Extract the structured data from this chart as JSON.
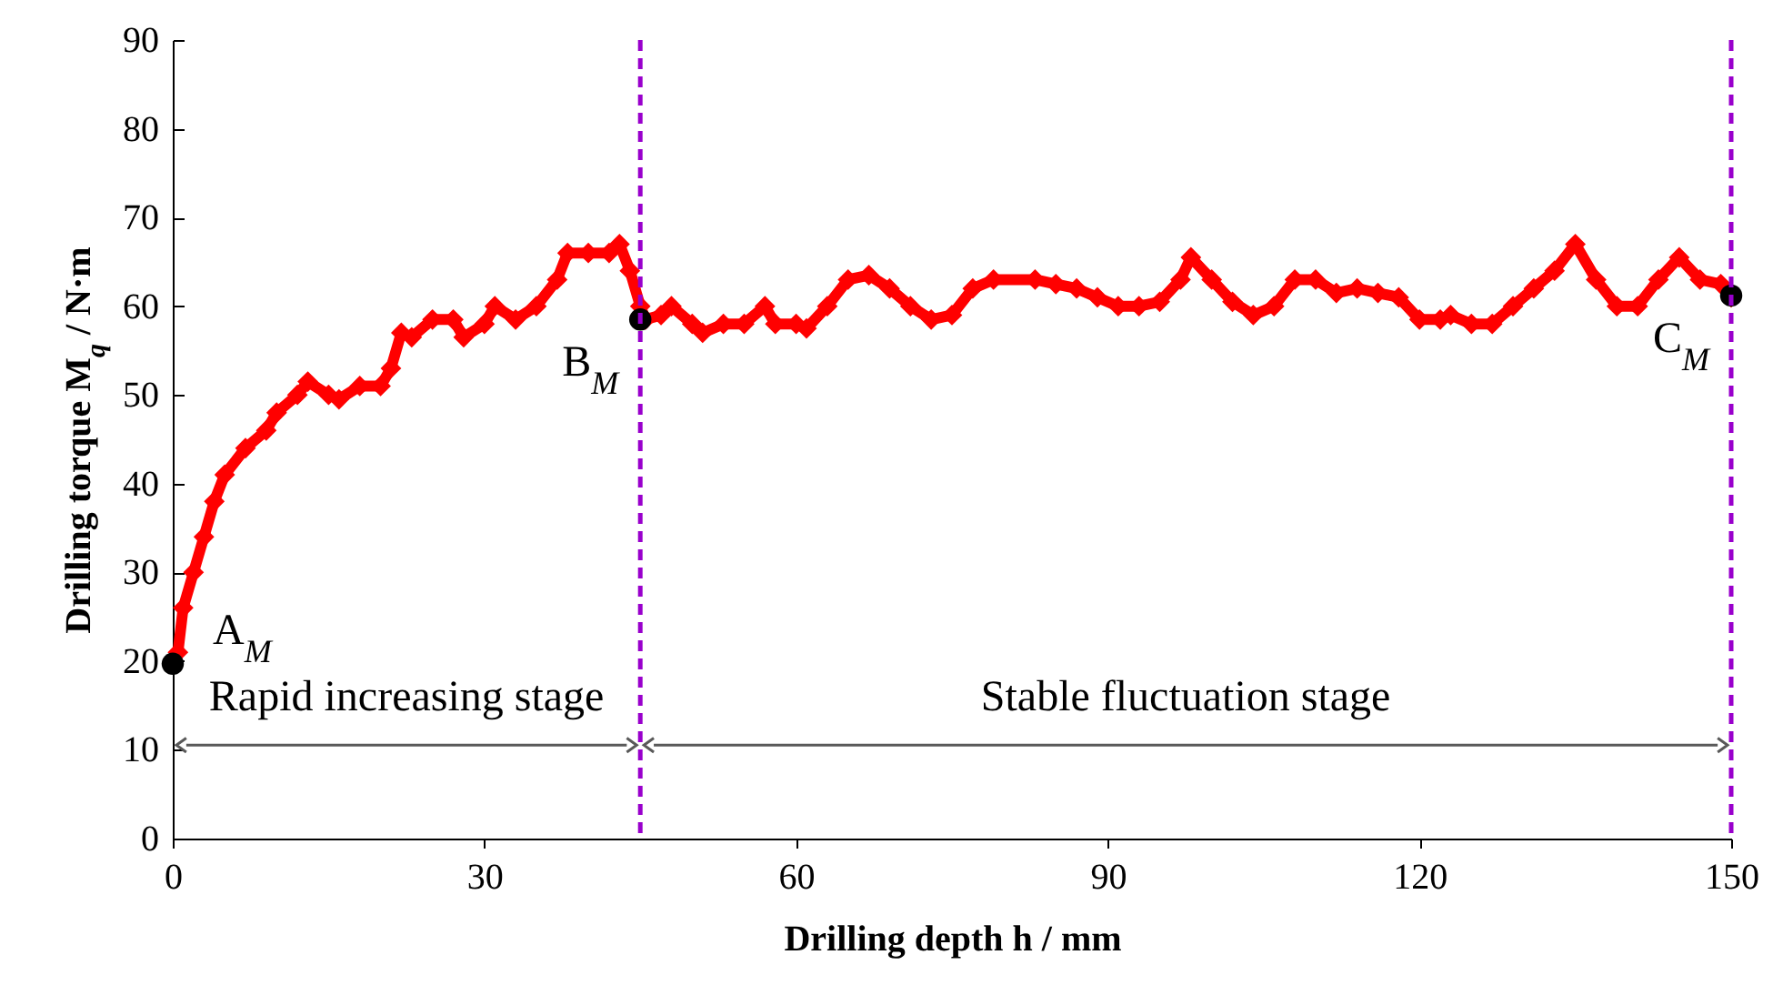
{
  "chart_data": {
    "type": "line",
    "xlabel": "Drilling depth h / mm",
    "ylabel": "Drilling torque M$_{q}$ / N·m",
    "xlim": [
      0,
      150
    ],
    "xticks": [
      0,
      30,
      60,
      90,
      120,
      150
    ],
    "ylim": [
      0,
      90
    ],
    "yticks": [
      0,
      10,
      20,
      30,
      40,
      50,
      60,
      70,
      80,
      90
    ],
    "grid": false,
    "series": [
      {
        "color": "#ff0000",
        "marker": "diamond",
        "x": [
          0.5,
          1,
          2,
          3,
          4,
          5,
          7,
          9,
          10,
          12,
          13,
          15,
          16,
          18,
          20,
          21,
          22,
          23,
          25,
          27,
          28,
          30,
          31,
          33,
          35,
          37,
          38,
          40,
          42,
          43,
          44,
          45,
          45.5,
          47,
          48,
          50,
          51,
          53,
          55,
          57,
          58,
          60,
          61,
          63,
          65,
          67,
          69,
          71,
          73,
          75,
          77,
          79,
          83,
          85,
          87,
          89,
          91,
          93,
          95,
          97,
          98,
          100,
          102,
          104,
          106,
          108,
          110,
          112,
          114,
          116,
          118,
          120,
          122,
          123,
          125,
          127,
          129,
          131,
          133,
          135,
          137,
          139,
          141,
          143,
          145,
          147,
          149,
          150
        ],
        "values": [
          21,
          26,
          30,
          34,
          38,
          41,
          44,
          46,
          48,
          50,
          51.5,
          50,
          49.5,
          51,
          51,
          53,
          57,
          56.5,
          58.5,
          58.5,
          56.5,
          58,
          60,
          58.5,
          60,
          63,
          66,
          66,
          66,
          67,
          64,
          60,
          58.5,
          59,
          60,
          58,
          57,
          58,
          58,
          60,
          58,
          58,
          57.5,
          60,
          63,
          63.5,
          62,
          60,
          58.5,
          59,
          62,
          63,
          63,
          62.5,
          62,
          61,
          60,
          60,
          60.5,
          63,
          65.5,
          63,
          60.5,
          59,
          60,
          63,
          63,
          61.5,
          62,
          61.5,
          61,
          58.5,
          58.5,
          59,
          58,
          58,
          60,
          62,
          64,
          67,
          63,
          60,
          60,
          63,
          65.5,
          63,
          62.5,
          61
        ]
      },
      {
        "type": "scatter",
        "color": "#000000",
        "marker": "circle",
        "x": [
          0,
          45,
          150
        ],
        "values": [
          19.7,
          58.5,
          61.2
        ]
      }
    ],
    "ref_lines": [
      {
        "axis": "x",
        "value": 45,
        "color": "#9900cc",
        "line_style": "dashed"
      },
      {
        "axis": "x",
        "value": 150,
        "color": "#9900cc",
        "line_style": "dashed"
      }
    ],
    "annotations": [
      {
        "text": "A$_{M}$",
        "x": 0,
        "y": 19.7
      },
      {
        "text": "B$_{M}$",
        "x": 45,
        "y": 58.5
      },
      {
        "text": "C$_{M}$",
        "x": 150,
        "y": 61.2
      },
      "Rapid increasing stage",
      "Stable fluctuation stage"
    ]
  }
}
